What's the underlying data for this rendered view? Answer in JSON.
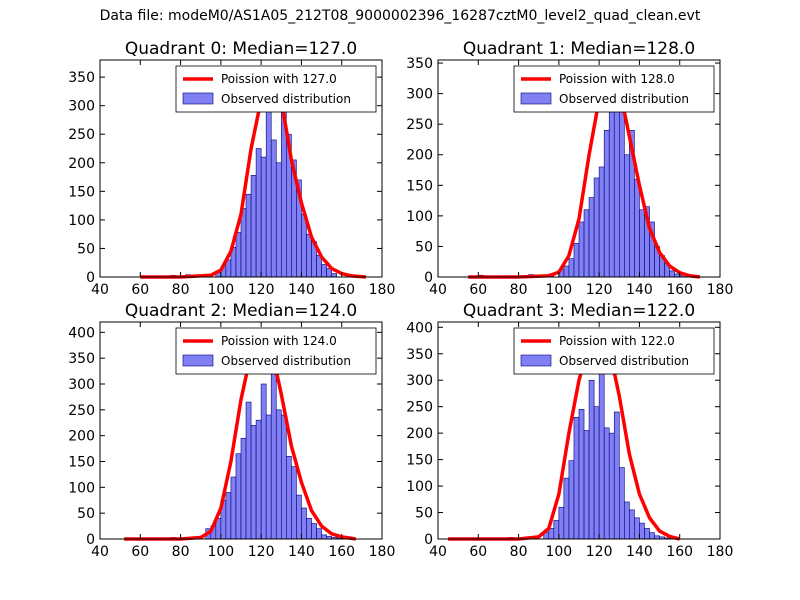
{
  "suptitle": "Data file: modeM0/AS1A05_212T08_9000002396_16287cztM0_level2_quad_clean.evt",
  "colors": {
    "poisson": "#ff0000",
    "bar_fill": "#8080f2",
    "bar_edge": "#000080"
  },
  "chart_data": [
    {
      "type": "bar",
      "title": "Quadrant 0: Median=127.0",
      "xlim": [
        40,
        180
      ],
      "ylim": [
        0,
        380
      ],
      "xticks": [
        40,
        60,
        80,
        100,
        120,
        140,
        160,
        180
      ],
      "yticks": [
        0,
        50,
        100,
        150,
        200,
        250,
        300,
        350
      ],
      "legend": [
        "Poission with 127.0",
        "Observed distribution"
      ],
      "legend_loc": "top-right",
      "bin_width": 2.5,
      "bin_starts": [
        60,
        75,
        82.5,
        92.5,
        97.5,
        100,
        102.5,
        105,
        107.5,
        110,
        112.5,
        115,
        117.5,
        120,
        122.5,
        125,
        127.5,
        130,
        132.5,
        135,
        137.5,
        140,
        142.5,
        145,
        147.5,
        150,
        152.5,
        155
      ],
      "values": [
        2,
        3,
        4,
        3,
        8,
        18,
        30,
        52,
        78,
        120,
        145,
        178,
        225,
        210,
        300,
        240,
        200,
        300,
        250,
        205,
        170,
        110,
        75,
        62,
        38,
        22,
        15,
        6
      ],
      "poisson": {
        "x": [
          60,
          80,
          95,
          100,
          105,
          110,
          115,
          120,
          125,
          130,
          135,
          140,
          145,
          150,
          155,
          160,
          165,
          172
        ],
        "y": [
          0,
          0,
          3,
          12,
          45,
          110,
          225,
          310,
          358,
          310,
          205,
          130,
          70,
          35,
          15,
          6,
          2,
          0
        ]
      }
    },
    {
      "type": "bar",
      "title": "Quadrant 1: Median=128.0",
      "xlim": [
        40,
        180
      ],
      "ylim": [
        0,
        355
      ],
      "xticks": [
        40,
        60,
        80,
        100,
        120,
        140,
        160,
        180
      ],
      "yticks": [
        0,
        50,
        100,
        150,
        200,
        250,
        300,
        350
      ],
      "legend": [
        "Poission with 128.0",
        "Observed distribution"
      ],
      "legend_loc": "top-right",
      "bin_width": 2.5,
      "bin_starts": [
        60,
        75,
        85,
        95,
        100,
        102.5,
        105,
        107.5,
        110,
        112.5,
        115,
        117.5,
        120,
        122.5,
        125,
        127.5,
        130,
        132.5,
        135,
        137.5,
        140,
        142.5,
        145,
        147.5,
        150,
        152.5,
        155,
        157.5,
        160
      ],
      "values": [
        3,
        2,
        4,
        5,
        12,
        18,
        30,
        55,
        90,
        110,
        130,
        162,
        180,
        240,
        270,
        290,
        320,
        200,
        240,
        160,
        110,
        115,
        90,
        50,
        35,
        22,
        10,
        5,
        3
      ],
      "poisson": {
        "x": [
          55,
          80,
          95,
          100,
          105,
          110,
          115,
          120,
          125,
          130,
          135,
          140,
          145,
          150,
          155,
          160,
          165,
          170
        ],
        "y": [
          0,
          0,
          2,
          8,
          35,
          95,
          200,
          290,
          342,
          310,
          230,
          150,
          80,
          40,
          18,
          7,
          2,
          0
        ]
      }
    },
    {
      "type": "bar",
      "title": "Quadrant 2: Median=124.0",
      "xlim": [
        40,
        180
      ],
      "ylim": [
        0,
        420
      ],
      "xticks": [
        40,
        60,
        80,
        100,
        120,
        140,
        160,
        180
      ],
      "yticks": [
        0,
        50,
        100,
        150,
        200,
        250,
        300,
        350,
        400
      ],
      "legend": [
        "Poission with 124.0",
        "Observed distribution"
      ],
      "legend_loc": "top-right",
      "bin_width": 2.5,
      "bin_starts": [
        60,
        75,
        85,
        92.5,
        95,
        97.5,
        100,
        102.5,
        105,
        107.5,
        110,
        112.5,
        115,
        117.5,
        120,
        122.5,
        125,
        127.5,
        130,
        132.5,
        135,
        137.5,
        140,
        142.5,
        145,
        147.5,
        150,
        152.5,
        155,
        157.5
      ],
      "values": [
        2,
        3,
        4,
        20,
        25,
        40,
        75,
        90,
        120,
        165,
        195,
        265,
        220,
        230,
        300,
        240,
        370,
        250,
        240,
        160,
        140,
        85,
        60,
        40,
        30,
        20,
        8,
        5,
        3,
        2
      ],
      "poisson": {
        "x": [
          52,
          80,
          90,
          95,
          100,
          105,
          110,
          115,
          120,
          125,
          130,
          135,
          140,
          145,
          150,
          155,
          160,
          167
        ],
        "y": [
          0,
          0,
          3,
          15,
          60,
          150,
          270,
          360,
          398,
          370,
          280,
          180,
          110,
          55,
          25,
          10,
          4,
          0
        ]
      }
    },
    {
      "type": "bar",
      "title": "Quadrant 3: Median=122.0",
      "xlim": [
        40,
        180
      ],
      "ylim": [
        0,
        410
      ],
      "xticks": [
        40,
        60,
        80,
        100,
        120,
        140,
        160,
        180
      ],
      "yticks": [
        0,
        50,
        100,
        150,
        200,
        250,
        300,
        350,
        400
      ],
      "legend": [
        "Poission with 122.0",
        "Observed distribution"
      ],
      "legend_loc": "top-right",
      "bin_width": 2.5,
      "bin_starts": [
        60,
        75,
        85,
        92.5,
        95,
        97.5,
        100,
        102.5,
        105,
        107.5,
        110,
        112.5,
        115,
        117.5,
        120,
        122.5,
        125,
        127.5,
        130,
        132.5,
        135,
        137.5,
        140,
        142.5,
        145,
        147.5,
        150,
        152.5,
        155
      ],
      "values": [
        2,
        3,
        4,
        12,
        20,
        35,
        60,
        115,
        148,
        230,
        245,
        205,
        300,
        250,
        340,
        210,
        200,
        240,
        135,
        70,
        55,
        40,
        30,
        20,
        12,
        6,
        4,
        2,
        1
      ],
      "poisson": {
        "x": [
          45,
          80,
          90,
          95,
          100,
          105,
          110,
          115,
          120,
          125,
          130,
          135,
          140,
          145,
          150,
          155,
          160
        ],
        "y": [
          0,
          0,
          4,
          20,
          85,
          200,
          300,
          370,
          392,
          360,
          270,
          160,
          85,
          40,
          15,
          5,
          0
        ]
      }
    }
  ]
}
